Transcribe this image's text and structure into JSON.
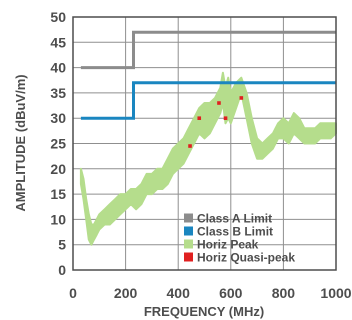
{
  "chart_data": {
    "type": "line",
    "title": "",
    "xlabel": "FREQUENCY (MHz)",
    "ylabel": "AMPLITUDE (dBuV/m)",
    "xlim": [
      0,
      1000
    ],
    "ylim": [
      0,
      50
    ],
    "x_ticks": [
      0,
      200,
      400,
      600,
      800,
      1000
    ],
    "y_ticks": [
      0,
      5,
      10,
      15,
      20,
      25,
      30,
      35,
      40,
      45,
      50
    ],
    "grid": true,
    "legend_position": "bottom-right",
    "series": [
      {
        "name": "Class A Limit",
        "kind": "step",
        "color": "#8c8c8c",
        "x": [
          30,
          230,
          230,
          1000
        ],
        "y": [
          40,
          40,
          47,
          47
        ]
      },
      {
        "name": "Class B Limit",
        "kind": "step",
        "color": "#1a86c0",
        "x": [
          30,
          230,
          230,
          1000
        ],
        "y": [
          30,
          30,
          37,
          37
        ]
      },
      {
        "name": "Horiz Peak",
        "kind": "band",
        "color": "#b5dd8c",
        "x": [
          30,
          40,
          50,
          60,
          70,
          80,
          90,
          100,
          120,
          140,
          160,
          180,
          200,
          220,
          240,
          260,
          280,
          300,
          320,
          340,
          360,
          380,
          400,
          420,
          440,
          460,
          480,
          500,
          520,
          540,
          560,
          570,
          580,
          590,
          600,
          620,
          640,
          660,
          680,
          700,
          720,
          740,
          760,
          780,
          800,
          820,
          840,
          860,
          880,
          900,
          920,
          940,
          960,
          980,
          1000
        ],
        "y_low": [
          17,
          14,
          10,
          6,
          5,
          6,
          7,
          8,
          9,
          9,
          10,
          11,
          12,
          13,
          12,
          13,
          15,
          15,
          16,
          16,
          17,
          19,
          20,
          21,
          23,
          25,
          27,
          26,
          27,
          29,
          31,
          33,
          29,
          30,
          29,
          32,
          35,
          30,
          25,
          22,
          22,
          23,
          24,
          26,
          26,
          25,
          27,
          26,
          25,
          25,
          25,
          26,
          26,
          26,
          27
        ],
        "y_high": [
          20,
          18,
          14,
          11,
          9,
          9,
          10,
          11,
          12,
          13,
          14,
          15,
          15,
          16,
          16,
          17,
          19,
          19,
          20,
          20,
          22,
          24,
          25,
          26,
          28,
          30,
          32,
          33,
          33,
          34,
          36,
          39,
          36,
          38,
          35,
          37,
          38,
          35,
          30,
          26,
          25,
          26,
          27,
          29,
          30,
          29,
          31,
          30,
          28,
          28,
          28,
          29,
          29,
          29,
          29
        ]
      },
      {
        "name": "Horiz Quasi-peak",
        "kind": "points",
        "color": "#e02020",
        "x": [
          445,
          480,
          555,
          580,
          640
        ],
        "y": [
          24.5,
          30,
          33,
          30,
          34
        ]
      }
    ]
  }
}
